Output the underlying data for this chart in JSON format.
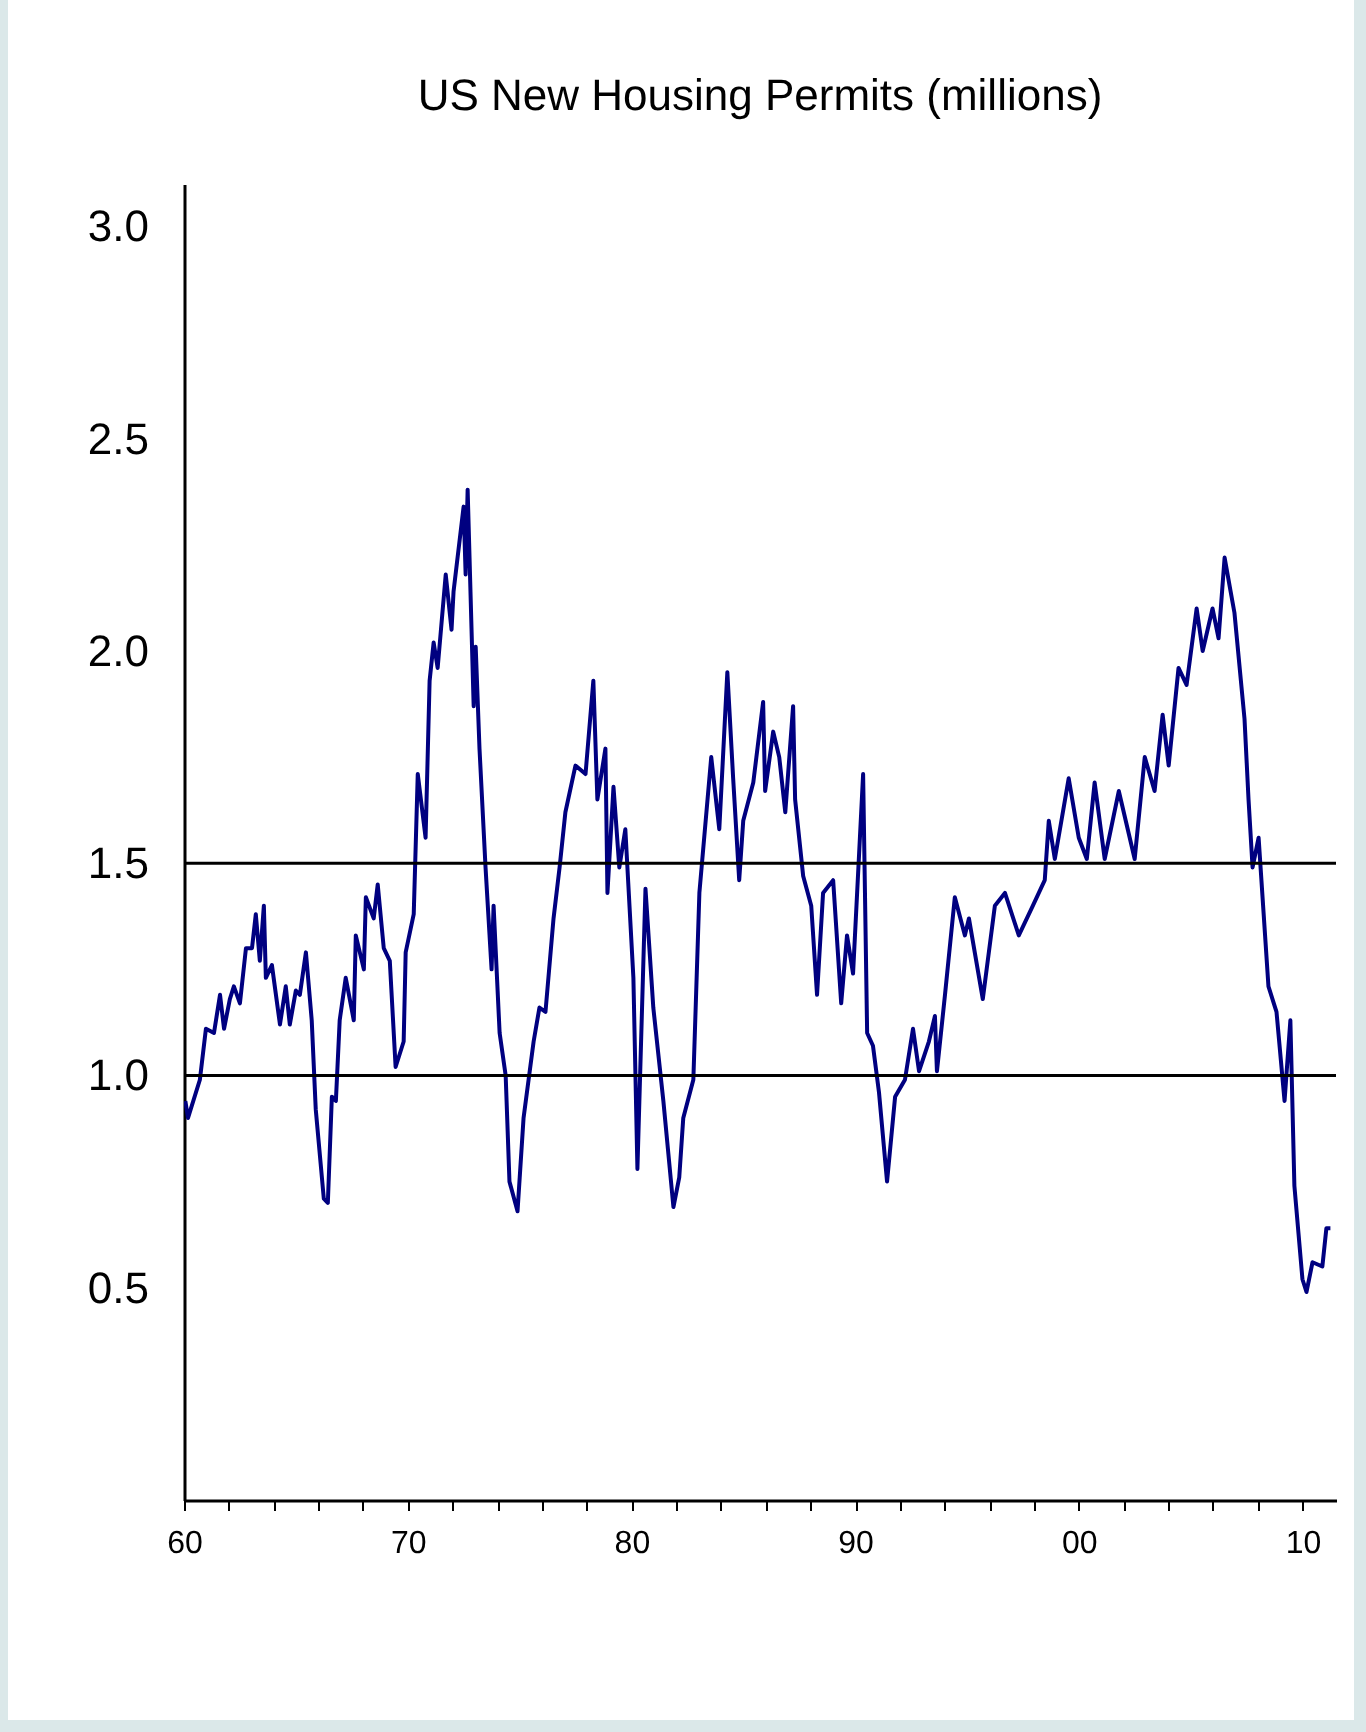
{
  "chart_data": {
    "type": "line",
    "title": "US New Housing Permits (millions)",
    "x": [
      1960.06,
      1960.18,
      1960.71,
      1960.98,
      1961.34,
      1961.61,
      1961.79,
      1962.05,
      1962.23,
      1962.5,
      1962.77,
      1963.04,
      1963.21,
      1963.39,
      1963.57,
      1963.66,
      1963.93,
      1964.29,
      1964.55,
      1964.73,
      1965.0,
      1965.18,
      1965.45,
      1965.71,
      1965.89,
      1966.25,
      1966.43,
      1966.61,
      1966.79,
      1966.96,
      1967.23,
      1967.59,
      1967.68,
      1968.04,
      1968.13,
      1968.48,
      1968.66,
      1968.93,
      1969.2,
      1969.46,
      1969.82,
      1969.91,
      1970.27,
      1970.45,
      1970.8,
      1970.98,
      1971.16,
      1971.34,
      1971.7,
      1971.96,
      1972.05,
      1972.5,
      1972.59,
      1972.68,
      1972.95,
      1973.04,
      1973.21,
      1973.48,
      1973.75,
      1973.84,
      1974.11,
      1974.38,
      1974.55,
      1974.91,
      1975.18,
      1975.63,
      1975.89,
      1976.16,
      1976.52,
      1976.79,
      1977.05,
      1977.5,
      1977.95,
      1978.3,
      1978.48,
      1978.84,
      1978.93,
      1979.2,
      1979.46,
      1979.73,
      1980.09,
      1980.27,
      1980.63,
      1980.98,
      1981.43,
      1981.88,
      1982.14,
      1982.32,
      1982.77,
      1983.04,
      1983.57,
      1983.93,
      1984.29,
      1984.55,
      1984.82,
      1985.0,
      1985.45,
      1985.89,
      1985.98,
      1986.34,
      1986.61,
      1986.88,
      1987.23,
      1987.32,
      1987.68,
      1988.04,
      1988.3,
      1988.57,
      1989.02,
      1989.38,
      1989.64,
      1989.91,
      1990.36,
      1990.54,
      1990.8,
      1991.07,
      1991.43,
      1991.79,
      1992.23,
      1992.59,
      1992.86,
      1993.3,
      1993.57,
      1993.66,
      1994.02,
      1994.46,
      1994.91,
      1995.09,
      1995.71,
      1996.25,
      1996.7,
      1997.32,
      1997.95,
      1998.48,
      1998.66,
      1998.93,
      1999.55,
      2000.0,
      2000.36,
      2000.71,
      2001.16,
      2001.79,
      2002.5,
      2002.95,
      2003.39,
      2003.75,
      2004.02,
      2004.46,
      2004.82,
      2005.27,
      2005.54,
      2005.98,
      2006.25,
      2006.52,
      2006.79,
      2006.96,
      2007.41,
      2007.59,
      2007.77,
      2008.04,
      2008.48,
      2008.84,
      2009.2,
      2009.46,
      2009.64,
      2010.0,
      2010.18,
      2010.45,
      2010.89,
      2011.07,
      2011.25
    ],
    "series": [
      {
        "color": "#000080",
        "values": [
          0.94,
          0.9,
          0.99,
          1.11,
          1.1,
          1.19,
          1.11,
          1.18,
          1.21,
          1.17,
          1.3,
          1.3,
          1.38,
          1.27,
          1.4,
          1.23,
          1.26,
          1.12,
          1.21,
          1.12,
          1.2,
          1.19,
          1.29,
          1.13,
          0.92,
          0.71,
          0.7,
          0.95,
          0.94,
          1.13,
          1.23,
          1.13,
          1.33,
          1.25,
          1.42,
          1.37,
          1.45,
          1.3,
          1.27,
          1.02,
          1.08,
          1.29,
          1.38,
          1.71,
          1.56,
          1.93,
          2.02,
          1.96,
          2.18,
          2.05,
          2.14,
          2.34,
          2.18,
          2.38,
          1.87,
          2.01,
          1.77,
          1.49,
          1.25,
          1.4,
          1.1,
          1.0,
          0.75,
          0.68,
          0.9,
          1.08,
          1.16,
          1.15,
          1.37,
          1.49,
          1.62,
          1.73,
          1.71,
          1.93,
          1.65,
          1.77,
          1.43,
          1.68,
          1.49,
          1.58,
          1.23,
          0.78,
          1.44,
          1.16,
          0.94,
          0.69,
          0.76,
          0.9,
          0.99,
          1.43,
          1.75,
          1.58,
          1.95,
          1.7,
          1.46,
          1.6,
          1.69,
          1.88,
          1.67,
          1.81,
          1.75,
          1.62,
          1.87,
          1.65,
          1.47,
          1.4,
          1.19,
          1.43,
          1.46,
          1.17,
          1.33,
          1.24,
          1.71,
          1.1,
          1.07,
          0.96,
          0.75,
          0.95,
          0.99,
          1.11,
          1.01,
          1.08,
          1.14,
          1.01,
          1.19,
          1.42,
          1.33,
          1.37,
          1.18,
          1.4,
          1.43,
          1.33,
          1.4,
          1.46,
          1.6,
          1.51,
          1.7,
          1.56,
          1.51,
          1.69,
          1.51,
          1.67,
          1.51,
          1.75,
          1.67,
          1.85,
          1.73,
          1.96,
          1.92,
          2.1,
          2.0,
          2.1,
          2.03,
          2.22,
          2.14,
          2.09,
          1.84,
          1.65,
          1.49,
          1.56,
          1.21,
          1.15,
          0.94,
          1.13,
          0.74,
          0.52,
          0.49,
          0.56,
          0.55,
          0.64,
          0.64
        ]
      }
    ],
    "xlim": [
      1960,
      2011.5
    ],
    "xticks": [
      {
        "value": 1960,
        "label": "60"
      },
      {
        "value": 1962,
        "label": null
      },
      {
        "value": 1964,
        "label": null
      },
      {
        "value": 1966,
        "label": null
      },
      {
        "value": 1968,
        "label": null
      },
      {
        "value": 1970,
        "label": "70"
      },
      {
        "value": 1972,
        "label": null
      },
      {
        "value": 1974,
        "label": null
      },
      {
        "value": 1976,
        "label": null
      },
      {
        "value": 1978,
        "label": null
      },
      {
        "value": 1980,
        "label": "80"
      },
      {
        "value": 1982,
        "label": null
      },
      {
        "value": 1984,
        "label": null
      },
      {
        "value": 1986,
        "label": null
      },
      {
        "value": 1988,
        "label": null
      },
      {
        "value": 1990,
        "label": "90"
      },
      {
        "value": 1992,
        "label": null
      },
      {
        "value": 1994,
        "label": null
      },
      {
        "value": 1996,
        "label": null
      },
      {
        "value": 1998,
        "label": null
      },
      {
        "value": 2000,
        "label": "00"
      },
      {
        "value": 2002,
        "label": null
      },
      {
        "value": 2004,
        "label": null
      },
      {
        "value": 2006,
        "label": null
      },
      {
        "value": 2008,
        "label": null
      },
      {
        "value": 2010,
        "label": "10"
      }
    ],
    "ylim": [
      0,
      3.1
    ],
    "yticks": [
      {
        "value": 0.5,
        "label": "0.5"
      },
      {
        "value": 1,
        "label": "1.0"
      },
      {
        "value": 1.5,
        "label": "1.5"
      },
      {
        "value": 2,
        "label": "2.0"
      },
      {
        "value": 2.5,
        "label": "2.5"
      },
      {
        "value": 3,
        "label": "3.0"
      }
    ],
    "grid": false,
    "ref_lines": [
      {
        "axis": "y",
        "value": 1.5,
        "color": "#000000"
      },
      {
        "axis": "y",
        "value": 1.0,
        "color": "#000000"
      }
    ]
  }
}
